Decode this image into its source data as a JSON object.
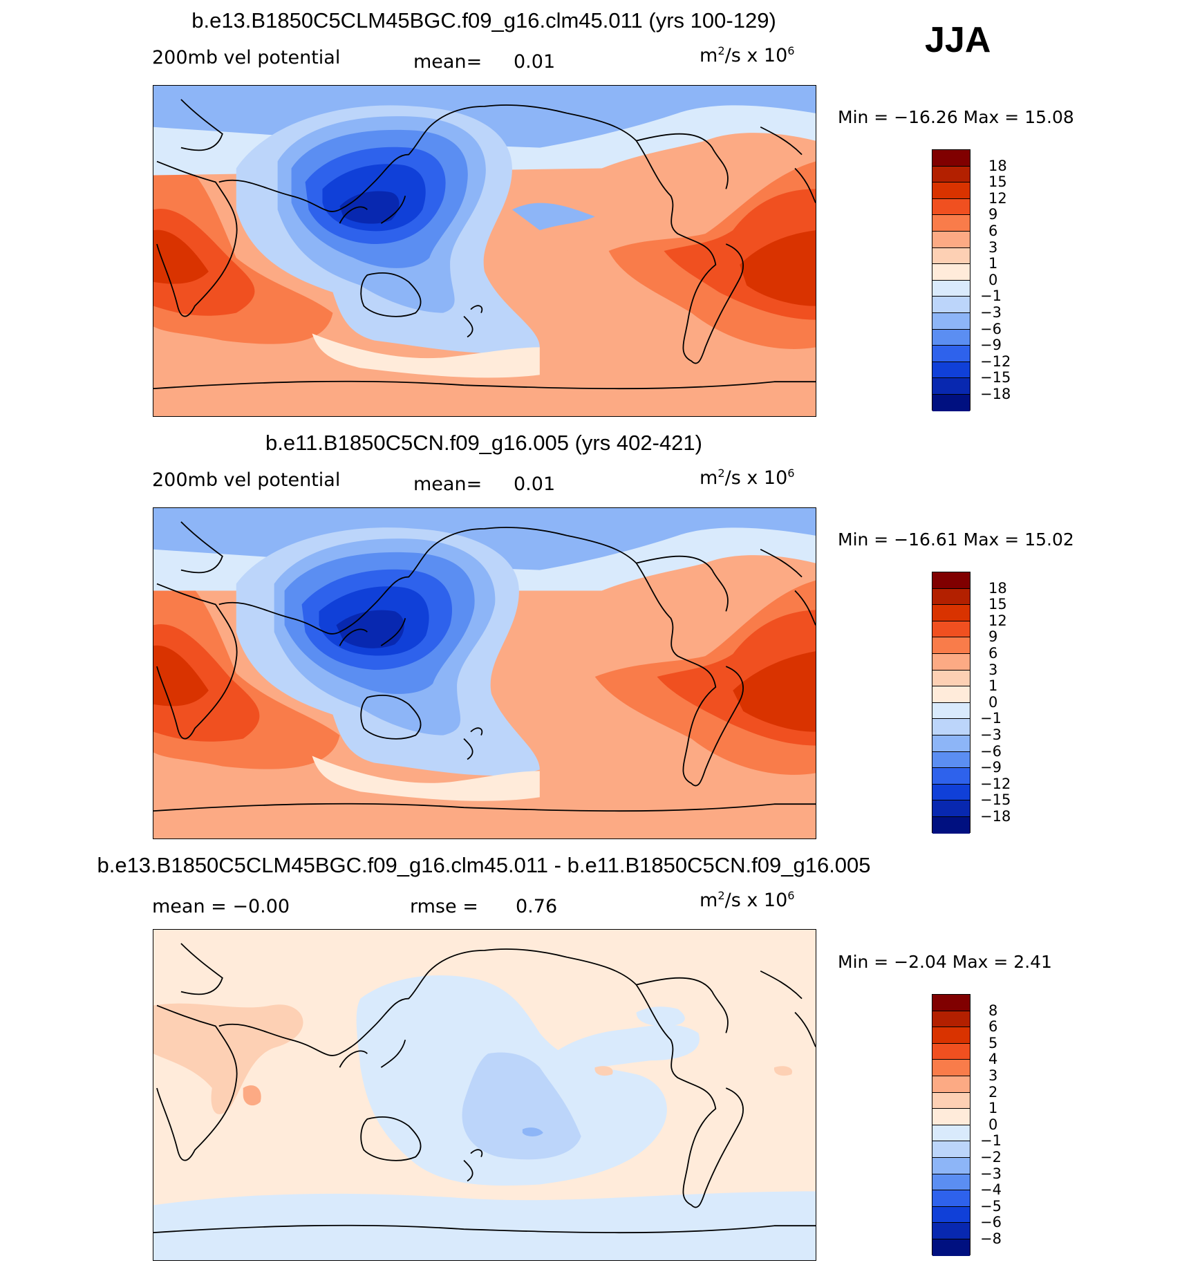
{
  "season": "JJA",
  "panels": [
    {
      "title": "b.e13.B1850C5CLM45BGC.f09_g16.clm45.011 (yrs 100-129)",
      "left_label": "200mb  vel  potential",
      "mid_label": "mean=",
      "mid_value": "0.01",
      "units": "m²/s  x  10⁶",
      "minmax": "Min  =  −16.26  Max  =     15.08",
      "levels": [
        "18",
        "15",
        "12",
        "9",
        "6",
        "3",
        "1",
        "0",
        "−1",
        "−3",
        "−6",
        "−9",
        "−12",
        "−15",
        "−18"
      ],
      "colors": [
        "#800000",
        "#b32000",
        "#d93300",
        "#f05020",
        "#f97c4a",
        "#fcaa84",
        "#fdd0b4",
        "#ffebda",
        "#d9eafc",
        "#bcd5fa",
        "#8db5f7",
        "#5b8ef2",
        "#2e62ec",
        "#1040d8",
        "#0828b0",
        "#001080"
      ]
    },
    {
      "title": "b.e11.B1850C5CN.f09_g16.005 (yrs 402-421)",
      "left_label": "200mb  vel  potential",
      "mid_label": "mean=",
      "mid_value": "0.01",
      "units": "m²/s  x  10⁶",
      "minmax": "Min  =  −16.61  Max  =     15.02",
      "levels": [
        "18",
        "15",
        "12",
        "9",
        "6",
        "3",
        "1",
        "0",
        "−1",
        "−3",
        "−6",
        "−9",
        "−12",
        "−15",
        "−18"
      ],
      "colors": [
        "#800000",
        "#b32000",
        "#d93300",
        "#f05020",
        "#f97c4a",
        "#fcaa84",
        "#fdd0b4",
        "#ffebda",
        "#d9eafc",
        "#bcd5fa",
        "#8db5f7",
        "#5b8ef2",
        "#2e62ec",
        "#1040d8",
        "#0828b0",
        "#001080"
      ]
    },
    {
      "title": "b.e13.B1850C5CLM45BGC.f09_g16.clm45.011 - b.e11.B1850C5CN.f09_g16.005",
      "left_label": "mean  =    −0.00",
      "mid_label": "rmse  =",
      "mid_value": "0.76",
      "units": "m²/s  x  10⁶",
      "minmax": "Min  =     −2.04  Max  =      2.41",
      "levels": [
        "8",
        "6",
        "5",
        "4",
        "3",
        "2",
        "1",
        "0",
        "−1",
        "−2",
        "−3",
        "−4",
        "−5",
        "−6",
        "−8"
      ],
      "colors": [
        "#800000",
        "#b32000",
        "#d93300",
        "#f05020",
        "#f97c4a",
        "#fcaa84",
        "#fdd0b4",
        "#ffebda",
        "#d9eafc",
        "#bcd5fa",
        "#8db5f7",
        "#5b8ef2",
        "#2e62ec",
        "#1040d8",
        "#0828b0",
        "#001080"
      ]
    }
  ]
}
